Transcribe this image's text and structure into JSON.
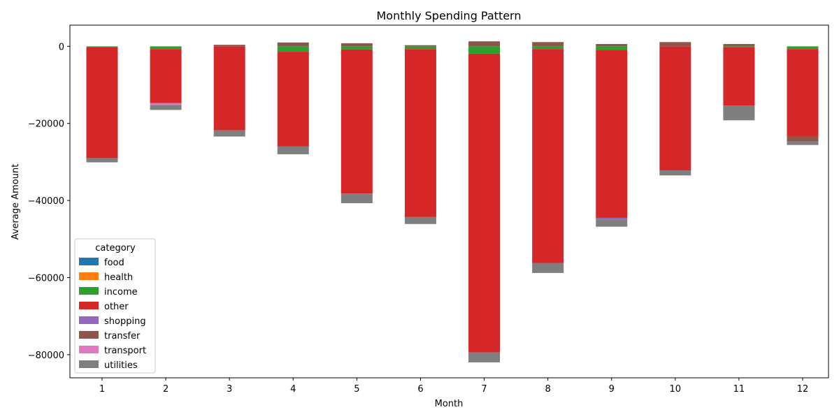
{
  "chart_data": {
    "type": "bar",
    "stacked": true,
    "title": "Monthly Spending Pattern",
    "xlabel": "Month",
    "ylabel": "Average Amount",
    "categories": [
      "1",
      "2",
      "3",
      "4",
      "5",
      "6",
      "7",
      "8",
      "9",
      "10",
      "11",
      "12"
    ],
    "ylim": [
      -86000,
      5500
    ],
    "yticks": [
      0,
      -20000,
      -40000,
      -60000,
      -80000
    ],
    "ytick_labels": [
      "0",
      "−20000",
      "−40000",
      "−60000",
      "−80000"
    ],
    "legend": {
      "title": "category",
      "position": "lower-left"
    },
    "series": [
      {
        "name": "food",
        "color": "#1f77b4",
        "values": [
          0,
          0,
          0,
          0,
          0,
          0,
          0,
          0,
          0,
          0,
          0,
          0
        ]
      },
      {
        "name": "health",
        "color": "#ff7f0e",
        "values": [
          0,
          0,
          0,
          0,
          0,
          0,
          0,
          0,
          0,
          0,
          0,
          0
        ]
      },
      {
        "name": "income",
        "color": "#2ca02c",
        "values": [
          -300,
          -700,
          0,
          -1400,
          -800,
          -700,
          -1900,
          -700,
          -900,
          0,
          -300,
          -700
        ]
      },
      {
        "name": "other",
        "color": "#d62728",
        "values": [
          -28700,
          -14000,
          -21800,
          -24600,
          -37400,
          -43600,
          -77500,
          -55500,
          -43600,
          -32200,
          -15100,
          -22600
        ]
      },
      {
        "name": "shopping",
        "color": "#9467bd",
        "values": [
          0,
          0,
          0,
          0,
          0,
          0,
          0,
          0,
          -400,
          0,
          0,
          0
        ]
      },
      {
        "name": "transfer",
        "color": "#8c564b",
        "values": [
          0,
          0,
          400,
          1000,
          800,
          300,
          1300,
          1100,
          600,
          1100,
          600,
          -1400
        ]
      },
      {
        "name": "transport",
        "color": "#e377c2",
        "values": [
          0,
          -500,
          0,
          0,
          0,
          0,
          0,
          0,
          0,
          0,
          0,
          0
        ]
      },
      {
        "name": "utilities",
        "color": "#7f7f7f",
        "values": [
          -1100,
          -1300,
          -1600,
          -2000,
          -2500,
          -1800,
          -2600,
          -2600,
          -1900,
          -1300,
          -3800,
          -900
        ]
      }
    ]
  }
}
